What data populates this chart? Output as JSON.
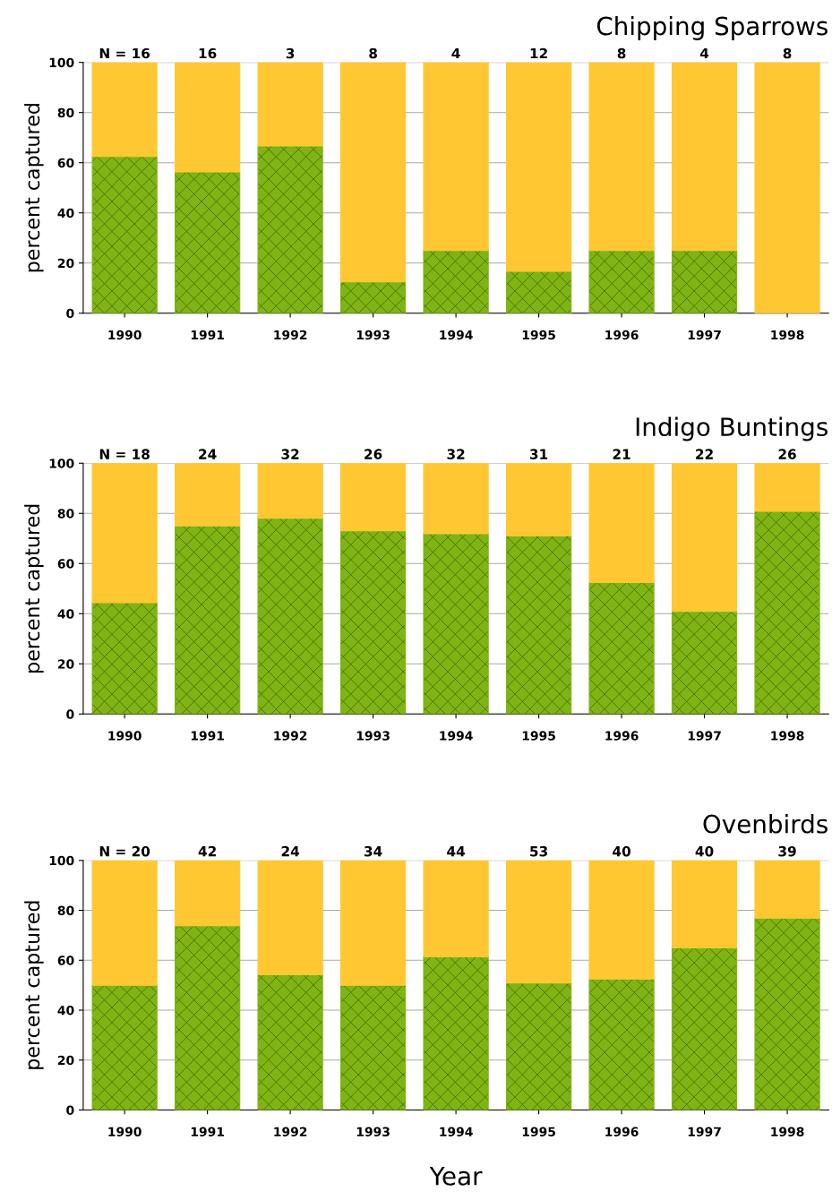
{
  "chart_data": [
    {
      "type": "bar",
      "stacked": true,
      "title": "Chipping Sparrows",
      "ylabel": "percent captured",
      "categories": [
        "1990",
        "1991",
        "1992",
        "1993",
        "1994",
        "1995",
        "1996",
        "1997",
        "1998"
      ],
      "series": [
        {
          "color": "#7fb414",
          "values": [
            62.5,
            56.3,
            66.7,
            12.5,
            25,
            16.7,
            25,
            25,
            0
          ]
        },
        {
          "color": "#ffc832",
          "values": [
            37.5,
            43.7,
            33.3,
            87.5,
            75,
            83.3,
            75,
            75,
            100
          ]
        }
      ],
      "ylim": [
        0,
        100
      ],
      "yticks": [
        0,
        20,
        40,
        60,
        80,
        100
      ],
      "grid": "y",
      "annotations": [
        {
          "text": "N = 16",
          "x": "1990",
          "y": 100
        },
        {
          "text": "16",
          "x": "1991",
          "y": 100
        },
        {
          "text": "3",
          "x": "1992",
          "y": 100
        },
        {
          "text": "8",
          "x": "1993",
          "y": 100
        },
        {
          "text": "4",
          "x": "1994",
          "y": 100
        },
        {
          "text": "12",
          "x": "1995",
          "y": 100
        },
        {
          "text": "8",
          "x": "1996",
          "y": 100
        },
        {
          "text": "4",
          "x": "1997",
          "y": 100
        },
        {
          "text": "8",
          "x": "1998",
          "y": 100
        }
      ]
    },
    {
      "type": "bar",
      "stacked": true,
      "title": "Indigo Buntings",
      "ylabel": "percent captured",
      "categories": [
        "1990",
        "1991",
        "1992",
        "1993",
        "1994",
        "1995",
        "1996",
        "1997",
        "1998"
      ],
      "series": [
        {
          "color": "#7fb414",
          "values": [
            44.4,
            75,
            78.1,
            73.1,
            71.9,
            71,
            52.4,
            40.9,
            80.8
          ]
        },
        {
          "color": "#ffc832",
          "values": [
            55.6,
            25,
            21.9,
            26.9,
            28.1,
            29,
            47.6,
            59.1,
            19.2
          ]
        }
      ],
      "ylim": [
        0,
        100
      ],
      "yticks": [
        0,
        20,
        40,
        60,
        80,
        100
      ],
      "grid": "y",
      "annotations": [
        {
          "text": "N = 18",
          "x": "1990",
          "y": 100
        },
        {
          "text": "24",
          "x": "1991",
          "y": 100
        },
        {
          "text": "32",
          "x": "1992",
          "y": 100
        },
        {
          "text": "26",
          "x": "1993",
          "y": 100
        },
        {
          "text": "32",
          "x": "1994",
          "y": 100
        },
        {
          "text": "31",
          "x": "1995",
          "y": 100
        },
        {
          "text": "21",
          "x": "1996",
          "y": 100
        },
        {
          "text": "22",
          "x": "1997",
          "y": 100
        },
        {
          "text": "26",
          "x": "1998",
          "y": 100
        }
      ]
    },
    {
      "type": "bar",
      "stacked": true,
      "title": "Ovenbirds",
      "ylabel": "percent captured",
      "xlabel": "Year",
      "categories": [
        "1990",
        "1991",
        "1992",
        "1993",
        "1994",
        "1995",
        "1996",
        "1997",
        "1998"
      ],
      "series": [
        {
          "color": "#7fb414",
          "values": [
            50,
            73.8,
            54.2,
            50,
            61.4,
            50.9,
            52.5,
            65,
            76.9
          ]
        },
        {
          "color": "#ffc832",
          "values": [
            50,
            26.2,
            45.8,
            50,
            38.6,
            49.1,
            47.5,
            35,
            23.1
          ]
        }
      ],
      "ylim": [
        0,
        100
      ],
      "yticks": [
        0,
        20,
        40,
        60,
        80,
        100
      ],
      "grid": "y",
      "annotations": [
        {
          "text": "N = 20",
          "x": "1990",
          "y": 100
        },
        {
          "text": "42",
          "x": "1991",
          "y": 100
        },
        {
          "text": "24",
          "x": "1992",
          "y": 100
        },
        {
          "text": "34",
          "x": "1993",
          "y": 100
        },
        {
          "text": "44",
          "x": "1994",
          "y": 100
        },
        {
          "text": "53",
          "x": "1995",
          "y": 100
        },
        {
          "text": "40",
          "x": "1996",
          "y": 100
        },
        {
          "text": "40",
          "x": "1997",
          "y": 100
        },
        {
          "text": "39",
          "x": "1998",
          "y": 100
        }
      ]
    }
  ]
}
